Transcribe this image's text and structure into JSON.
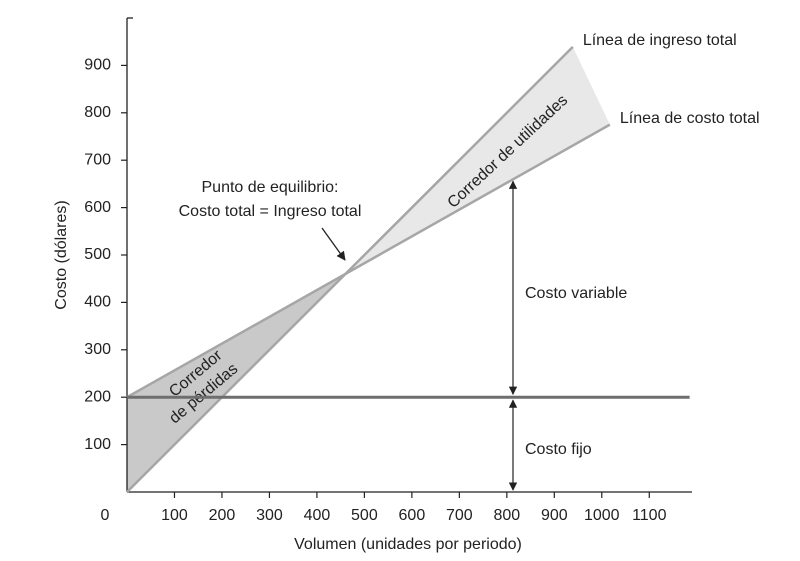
{
  "chart_data": {
    "type": "line",
    "x_label": "Volumen (unidades por periodo)",
    "y_label": "Costo (dólares)",
    "xlim": [
      0,
      1190
    ],
    "ylim": [
      0,
      1000
    ],
    "xticks": [
      0,
      100,
      200,
      300,
      400,
      500,
      600,
      700,
      800,
      900,
      1000,
      1100
    ],
    "yticks": [
      100,
      200,
      300,
      400,
      500,
      600,
      700,
      800,
      900
    ],
    "series": [
      {
        "name": "Línea de ingreso total",
        "color": "#a6a6a6",
        "x": [
          0,
          939
        ],
        "values": [
          0,
          939
        ]
      },
      {
        "name": "Línea de costo total",
        "color": "#a6a6a6",
        "x": [
          0,
          1017
        ],
        "values": [
          200,
          775
        ]
      },
      {
        "color": "#6e6e6e",
        "x": [
          0,
          1185
        ],
        "values": [
          200,
          200
        ]
      }
    ],
    "annotations": {
      "breakeven": [
        "Punto de equilibrio:",
        "Costo total = Ingreso total"
      ],
      "profit": "Corredor de utilidades",
      "loss": [
        "Corredor",
        "de pérdidas"
      ],
      "variable": "Costo variable",
      "fixed": "Costo fijo"
    }
  }
}
